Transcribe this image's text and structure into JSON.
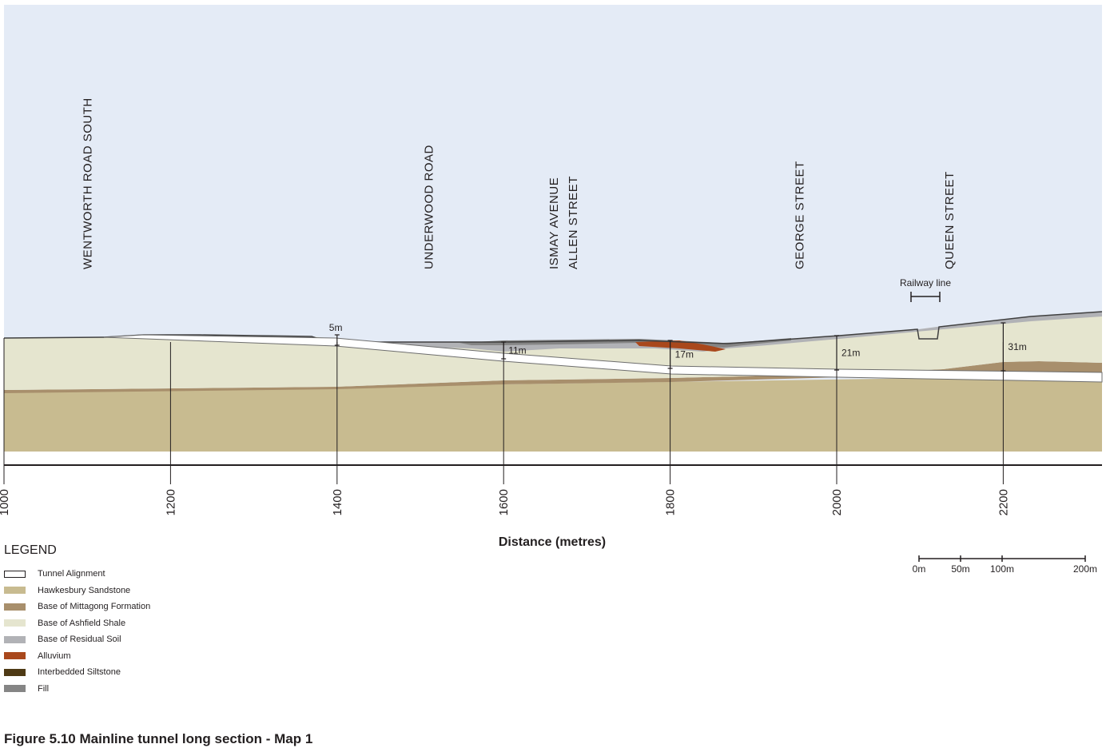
{
  "figure": {
    "caption": "Figure 5.10 Mainline tunnel long section - Map 1",
    "x_axis_title": "Distance (metres)",
    "x_ticks": [
      "1000",
      "1200",
      "1400",
      "1600",
      "1800",
      "2000",
      "2200"
    ],
    "street_labels": [
      {
        "lines": [
          "WENTWORTH ROAD SOUTH"
        ],
        "chainage": 1105
      },
      {
        "lines": [
          "UNDERWOOD ROAD"
        ],
        "chainage": 1515
      },
      {
        "lines": [
          "ISMAY AVENUE",
          "ALLEN STREET"
        ],
        "chainage": 1665
      },
      {
        "lines": [
          "GEORGE STREET"
        ],
        "chainage": 1960
      },
      {
        "lines": [
          "QUEEN STREET"
        ],
        "chainage": 2140
      }
    ],
    "depth_callouts": [
      {
        "label": "5m",
        "chainage": 1400
      },
      {
        "label": "11m",
        "chainage": 1600
      },
      {
        "label": "17m",
        "chainage": 1800
      },
      {
        "label": "21m",
        "chainage": 2000
      },
      {
        "label": "31m",
        "chainage": 2200
      }
    ],
    "railway_label": "Railway line",
    "scale_bar": {
      "labels": [
        "0m",
        "50m",
        "100m",
        "200m"
      ],
      "metres": [
        0,
        50,
        100,
        200
      ]
    },
    "colors": {
      "sky": "#e4ebf6",
      "hawkesbury_sandstone": "#c8bb90",
      "mittagong_formation": "#a88f6c",
      "ashfield_shale": "#e5e5cf",
      "residual_soil": "#b1b2b6",
      "alluvium": "#a9481c",
      "interbedded_siltstone": "#4e3a15",
      "fill": "#858585",
      "tunnel": "#ffffff"
    }
  },
  "legend": {
    "title": "LEGEND",
    "items": [
      {
        "label": "Tunnel Alignment",
        "color": "#ffffff"
      },
      {
        "label": "Hawkesbury Sandstone",
        "color": "#c8bb90"
      },
      {
        "label": "Base of Mittagong Formation",
        "color": "#a88f6c"
      },
      {
        "label": "Base of Ashfield Shale",
        "color": "#e5e5cf"
      },
      {
        "label": "Base of Residual Soil",
        "color": "#b1b2b6"
      },
      {
        "label": "Alluvium",
        "color": "#a9481c"
      },
      {
        "label": "Interbedded Siltstone",
        "color": "#4e3a15"
      },
      {
        "label": "Fill",
        "color": "#858585"
      }
    ]
  }
}
